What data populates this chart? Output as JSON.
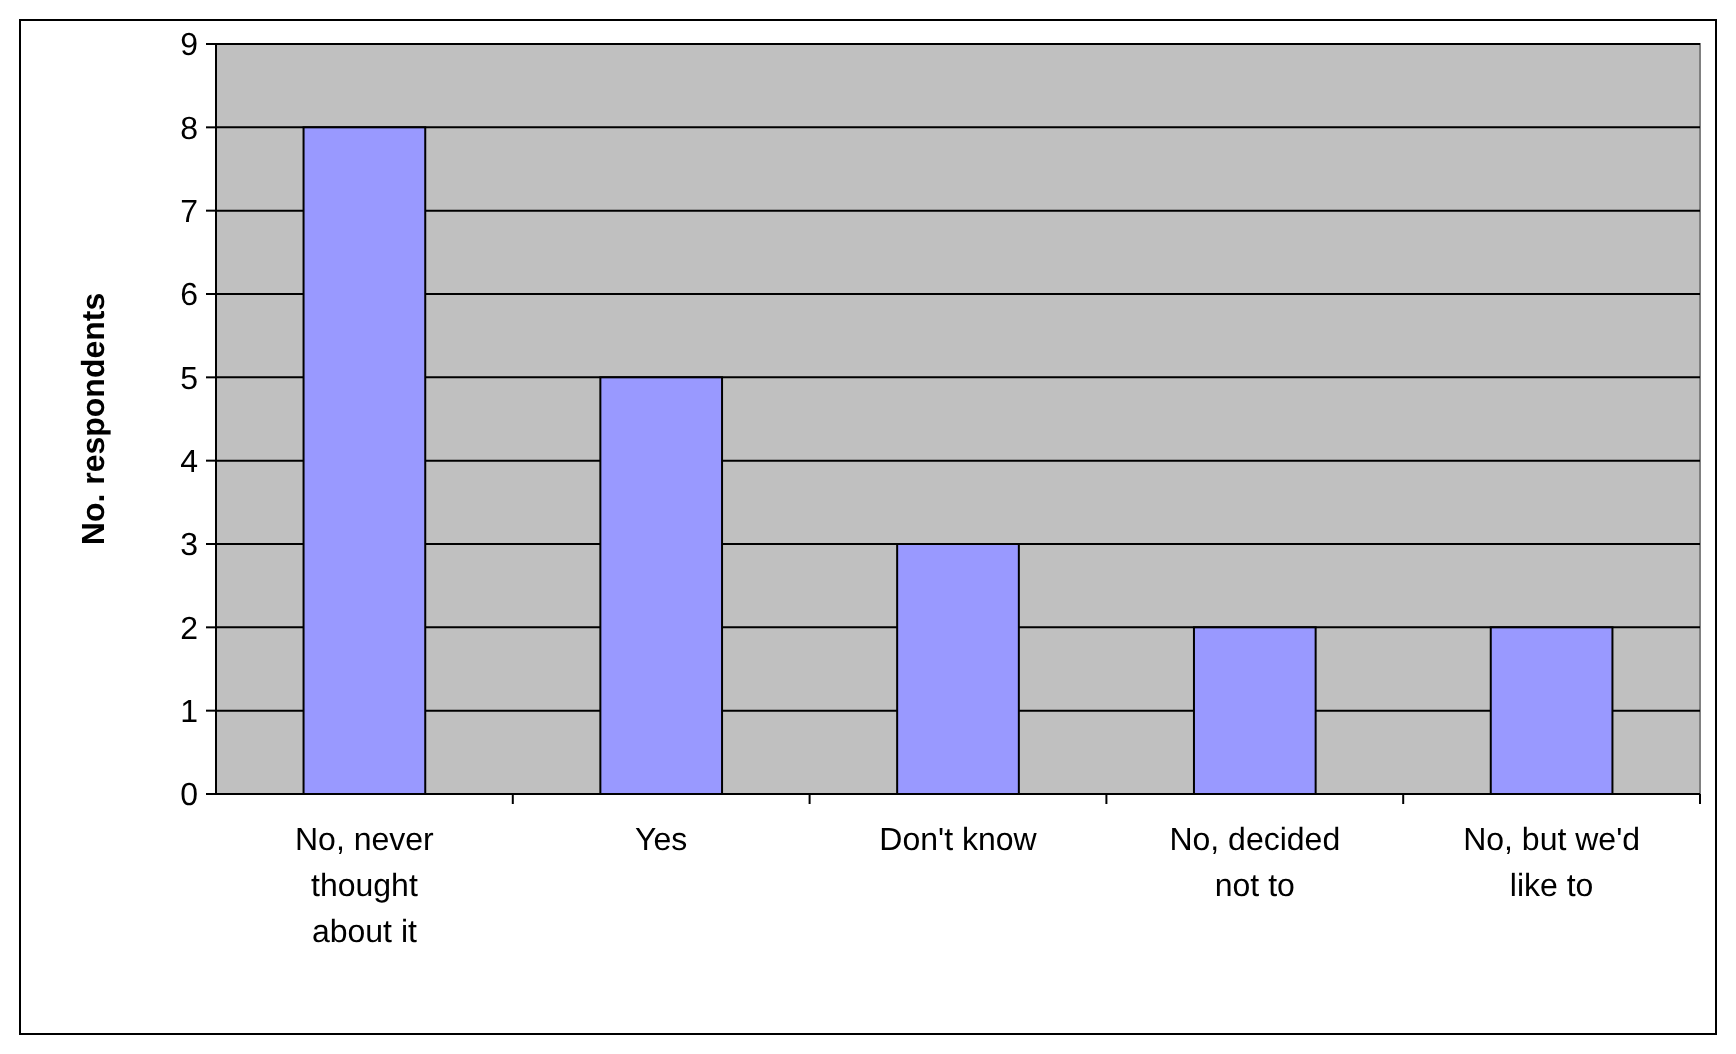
{
  "chart_data": {
    "type": "bar",
    "ylabel": "No. respondents",
    "categories": [
      "No, never thought about it",
      "Yes",
      "Don't know",
      "No, decided not to",
      "No, but we'd like to"
    ],
    "values": [
      8,
      5,
      3,
      2,
      2
    ],
    "color": "#9999ff",
    "ylim": [
      0,
      9
    ],
    "yticks": [
      0,
      1,
      2,
      3,
      4,
      5,
      6,
      7,
      8,
      9
    ],
    "grid": "y"
  }
}
